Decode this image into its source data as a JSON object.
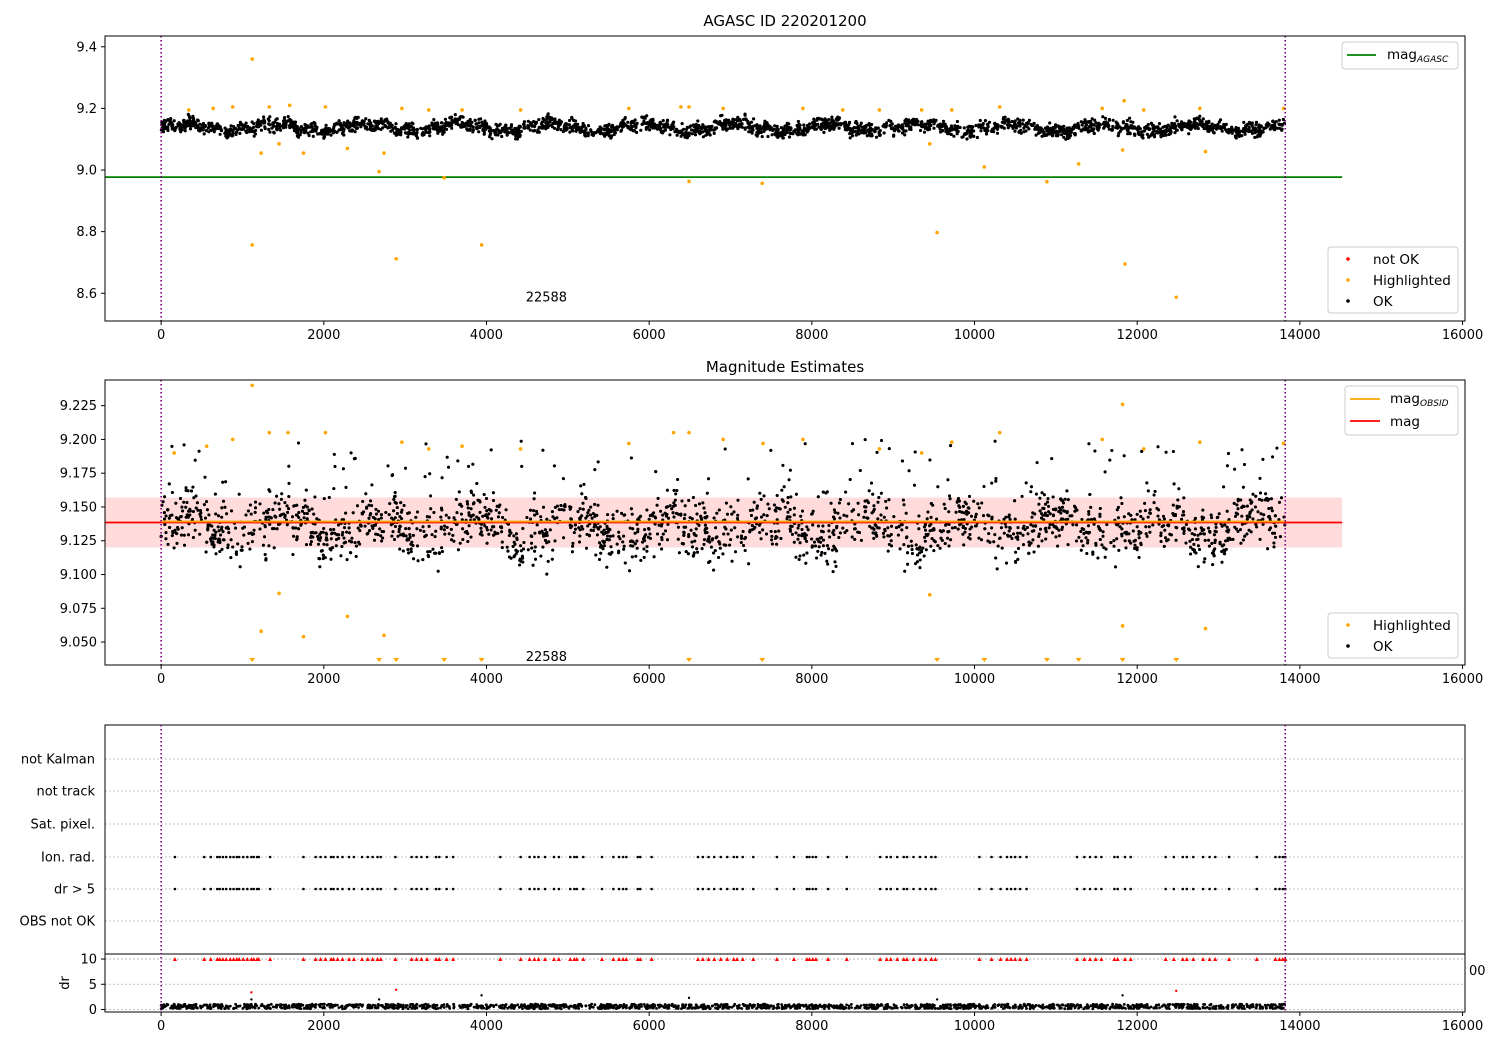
{
  "colors": {
    "ok": "#000000",
    "highlighted": "#ffa500",
    "not_ok": "#ff0000",
    "agasc_line": "#008000",
    "mag_line": "#ff0000",
    "obsid_line": "#ffa500",
    "band_fill": "#ffcccc",
    "obs_marker": "#800080"
  },
  "chart_data": [
    {
      "type": "scatter",
      "title": "AGASC ID 220201200",
      "xlim": [
        -690,
        16030
      ],
      "ylim": [
        8.51,
        9.435
      ],
      "xticks": [
        0,
        2000,
        4000,
        6000,
        8000,
        10000,
        12000,
        14000,
        16000
      ],
      "yticks": [
        8.6,
        8.8,
        9.0,
        9.2,
        9.4
      ],
      "ytick_labels": [
        "8.6",
        "8.8",
        "9.0",
        "9.2",
        "9.4"
      ],
      "annotation": {
        "text": "22588",
        "x": 6900,
        "y": 8.55
      },
      "obs_boundaries": [
        0,
        13820
      ],
      "legend_lines": [
        {
          "label": "mag",
          "sub": "AGASC",
          "value": 8.977,
          "x_range": [
            -690,
            14520
          ]
        }
      ],
      "legend_points": [
        "not OK",
        "Highlighted",
        "OK"
      ],
      "ok_band": {
        "center": 9.138,
        "spread": 0.022,
        "x_range": [
          0,
          13820
        ]
      },
      "highlighted": [
        [
          1120,
          9.36
        ],
        [
          1120,
          8.757
        ],
        [
          1230,
          9.055
        ],
        [
          1450,
          9.085
        ],
        [
          1750,
          9.055
        ],
        [
          2290,
          9.07
        ],
        [
          2680,
          8.995
        ],
        [
          2740,
          9.055
        ],
        [
          2890,
          8.712
        ],
        [
          3480,
          8.975
        ],
        [
          3940,
          8.757
        ],
        [
          6490,
          8.963
        ],
        [
          7390,
          8.957
        ],
        [
          9450,
          9.085
        ],
        [
          9540,
          8.797
        ],
        [
          10120,
          9.01
        ],
        [
          10890,
          8.962
        ],
        [
          11280,
          9.02
        ],
        [
          11820,
          9.065
        ],
        [
          11840,
          9.225
        ],
        [
          11850,
          8.695
        ],
        [
          12480,
          8.587
        ],
        [
          12840,
          9.06
        ]
      ],
      "highlighted_top": [
        [
          340,
          9.195
        ],
        [
          640,
          9.2
        ],
        [
          880,
          9.205
        ],
        [
          1330,
          9.205
        ],
        [
          1580,
          9.21
        ],
        [
          2020,
          9.205
        ],
        [
          2960,
          9.2
        ],
        [
          3290,
          9.195
        ],
        [
          3700,
          9.195
        ],
        [
          4420,
          9.195
        ],
        [
          5750,
          9.2
        ],
        [
          6390,
          9.205
        ],
        [
          6490,
          9.205
        ],
        [
          6910,
          9.2
        ],
        [
          7890,
          9.2
        ],
        [
          8380,
          9.195
        ],
        [
          8830,
          9.195
        ],
        [
          9350,
          9.195
        ],
        [
          9720,
          9.195
        ],
        [
          10310,
          9.205
        ],
        [
          11570,
          9.2
        ],
        [
          12080,
          9.195
        ],
        [
          12770,
          9.2
        ],
        [
          13800,
          9.2
        ]
      ]
    },
    {
      "type": "scatter",
      "title": "Magnitude Estimates",
      "xlim": [
        -690,
        16030
      ],
      "ylim": [
        9.033,
        9.244
      ],
      "xticks": [
        0,
        2000,
        4000,
        6000,
        8000,
        10000,
        12000,
        14000,
        16000
      ],
      "yticks": [
        9.05,
        9.075,
        9.1,
        9.125,
        9.15,
        9.175,
        9.2,
        9.225
      ],
      "ytick_labels": [
        "9.050",
        "9.075",
        "9.100",
        "9.125",
        "9.150",
        "9.175",
        "9.200",
        "9.225"
      ],
      "annotation": {
        "text": "22588",
        "x": 6900,
        "y": 9.039
      },
      "obs_boundaries": [
        0,
        13820
      ],
      "legend_lines": [
        {
          "label": "mag",
          "sub": "OBSID",
          "value": 9.1385,
          "x_range": [
            0,
            13820
          ]
        },
        {
          "label": "mag",
          "sub": "",
          "value": 9.1385,
          "x_range": [
            -690,
            14520
          ]
        }
      ],
      "legend_points": [
        "Highlighted",
        "OK"
      ],
      "mag_band": [
        9.12,
        9.157
      ],
      "ok_band": {
        "center": 9.135,
        "spread": 0.014,
        "x_range": [
          0,
          13820
        ]
      },
      "highlighted": [
        [
          1120,
          9.24
        ],
        [
          1230,
          9.058
        ],
        [
          1450,
          9.086
        ],
        [
          1750,
          9.054
        ],
        [
          2290,
          9.069
        ],
        [
          2740,
          9.055
        ],
        [
          9450,
          9.085
        ],
        [
          11820,
          9.226
        ],
        [
          11820,
          9.062
        ],
        [
          12840,
          9.06
        ]
      ],
      "highlighted_top": [
        [
          160,
          9.19
        ],
        [
          560,
          9.195
        ],
        [
          880,
          9.2
        ],
        [
          1330,
          9.205
        ],
        [
          1560,
          9.205
        ],
        [
          2020,
          9.205
        ],
        [
          2960,
          9.198
        ],
        [
          3290,
          9.193
        ],
        [
          3700,
          9.195
        ],
        [
          4420,
          9.193
        ],
        [
          5750,
          9.197
        ],
        [
          6300,
          9.205
        ],
        [
          6490,
          9.205
        ],
        [
          6910,
          9.2
        ],
        [
          7400,
          9.197
        ],
        [
          7890,
          9.2
        ],
        [
          8830,
          9.193
        ],
        [
          9350,
          9.19
        ],
        [
          9720,
          9.198
        ],
        [
          10310,
          9.205
        ],
        [
          11570,
          9.2
        ],
        [
          12080,
          9.193
        ],
        [
          12770,
          9.198
        ],
        [
          13800,
          9.197
        ]
      ],
      "down_markers_x": [
        1120,
        2680,
        2890,
        3480,
        3940,
        6490,
        7390,
        9540,
        10120,
        10890,
        11280,
        11820,
        12480
      ]
    },
    {
      "type": "scatter",
      "title": "",
      "xlim": [
        -690,
        16030
      ],
      "ylim": [
        -0.5,
        11
      ],
      "xticks": [
        0,
        2000,
        4000,
        6000,
        8000,
        10000,
        12000,
        14000,
        16000
      ],
      "obs_boundaries": [
        0,
        13820
      ],
      "flag_rows": [
        "not Kalman",
        "not track",
        "Sat. pixel.",
        "Ion. rad.",
        "dr > 5",
        "OBS not OK"
      ],
      "flag_events_x": [
        170,
        530,
        610,
        690,
        720,
        760,
        800,
        850,
        890,
        930,
        960,
        1010,
        1060,
        1110,
        1140,
        1180,
        1200,
        1340,
        1750,
        1900,
        1960,
        2020,
        2090,
        2120,
        2170,
        2230,
        2310,
        2370,
        2470,
        2540,
        2600,
        2660,
        2700,
        2880,
        3080,
        3140,
        3200,
        3270,
        3380,
        3420,
        3510,
        3590,
        4170,
        4420,
        4530,
        4590,
        4640,
        4720,
        4830,
        4890,
        5030,
        5080,
        5110,
        5190,
        5420,
        5560,
        5630,
        5680,
        5720,
        5860,
        5890,
        6030,
        6600,
        6660,
        6730,
        6800,
        6880,
        6960,
        7040,
        7080,
        7150,
        7280,
        7570,
        7780,
        7940,
        7970,
        8010,
        8050,
        8200,
        8430,
        8840,
        8920,
        8970,
        9050,
        9130,
        9170,
        9250,
        9330,
        9400,
        9470,
        9520,
        10060,
        10210,
        10320,
        10400,
        10450,
        10500,
        10560,
        10640,
        11260,
        11350,
        11420,
        11490,
        11560,
        11720,
        11760,
        11850,
        11920,
        12350,
        12450,
        12560,
        12610,
        12690,
        12810,
        12890,
        12960,
        13130,
        13470,
        13700,
        13750,
        13790,
        13820
      ],
      "dr": {
        "ylabel": "dr",
        "yticks": [
          0,
          5,
          10
        ],
        "ytick_labels": [
          "0",
          "5",
          "10"
        ],
        "ylim": [
          -0.5,
          11
        ],
        "gridlines": [
          0,
          5,
          10
        ],
        "outliers": [
          [
            1110,
            3.4
          ],
          [
            1110,
            2.0
          ],
          [
            2680,
            2.0
          ],
          [
            2890,
            3.9
          ],
          [
            3940,
            2.8
          ],
          [
            6490,
            2.3
          ],
          [
            9540,
            2.0
          ],
          [
            11820,
            2.8
          ],
          [
            12480,
            3.7
          ]
        ]
      },
      "stray_label": "00"
    }
  ]
}
